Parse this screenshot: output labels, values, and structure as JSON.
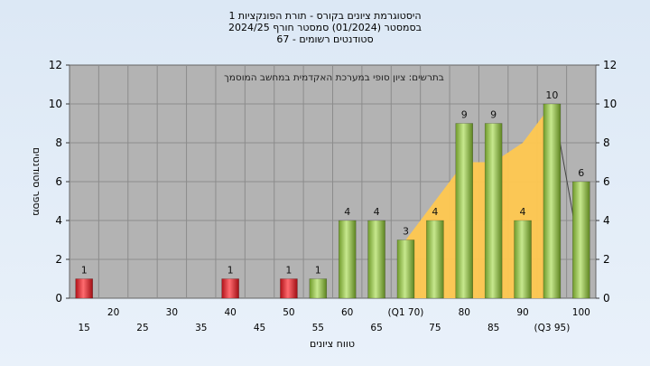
{
  "title_lines": [
    "היסטוגרמת ציונים בקורס - תורת הפונקציות 1",
    "בסמסטר  (01/2024)  סמסטר חורף 2024/25",
    "סטודנטים רשומים - 67"
  ],
  "chart_data": {
    "type": "bar",
    "ylabel": "מספר סטודנטים",
    "xlabel": "טווח ציונים",
    "annotation": "בתרשים: ציון סופי במערכת האקדמית במחשב המוסמך",
    "ylim": [
      0,
      12
    ],
    "yticks": [
      0,
      2,
      4,
      6,
      8,
      10,
      12
    ],
    "grid": true,
    "categories": [
      "15",
      "20",
      "25",
      "30",
      "35",
      "40",
      "45",
      "50",
      "55",
      "60",
      "65",
      "(Q1 70)",
      "75",
      "80",
      "85",
      "90",
      "(Q3 95)",
      "100"
    ],
    "values": [
      1,
      0,
      0,
      0,
      0,
      1,
      0,
      1,
      1,
      4,
      4,
      3,
      4,
      9,
      9,
      4,
      10,
      6
    ],
    "data_labels": [
      "1",
      "",
      "",
      "",
      "",
      "1",
      "",
      "1",
      "1",
      "4",
      "4",
      "3",
      "4",
      "9",
      "9",
      "4",
      "10",
      "6"
    ],
    "bar_colors": [
      "#e8232c",
      "",
      "",
      "",
      "",
      "#e8232c",
      "",
      "#e8232c",
      "#8cc63f",
      "#8cc63f",
      "#8cc63f",
      "#8cc63f",
      "#8cc63f",
      "#8cc63f",
      "#8cc63f",
      "#8cc63f",
      "#8cc63f",
      "#8cc63f"
    ],
    "area_series": {
      "color": "#ffc850",
      "x_from": "(Q1 70)",
      "x_to": "(Q3 95)",
      "values": [
        3,
        5,
        7,
        7,
        8,
        10
      ]
    },
    "colors": {
      "plot_bg": "#b3b3b3",
      "grid": "#8c8c8c"
    }
  }
}
